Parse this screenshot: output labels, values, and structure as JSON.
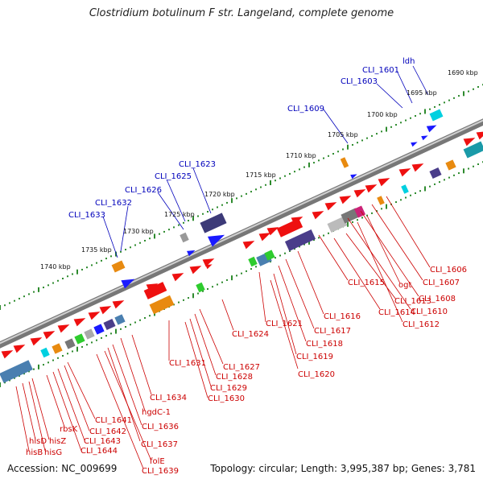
{
  "title": "Clostridium botulinum F str. Langeland, complete genome",
  "accession_label": "Accession: NC_009699",
  "stats_label": "Topology: circular; Length: 3,995,387 bp; Genes: 3,781",
  "colors": {
    "leader_top": "#0000bb",
    "leader_bottom": "#cc0000",
    "backbone": "#8a8a8a",
    "tick_dots": "#2e8b2e"
  },
  "scale_labels": [
    "1690 kbp",
    "1695 kbp",
    "1700 kbp",
    "1705 kbp",
    "1710 kbp",
    "1715 kbp",
    "1720 kbp",
    "1725 kbp",
    "1730 kbp",
    "1735 kbp",
    "1740 kbp"
  ],
  "top_gene_labels": [
    "ldh",
    "CLI_1601",
    "CLI_1603",
    "CLI_1609",
    "CLI_1623",
    "CLI_1625",
    "CLI_1626",
    "CLI_1632",
    "CLI_1633"
  ],
  "bottom_gene_labels": [
    "CLI_1606",
    "CLI_1607",
    "CLI_1608",
    "CLI_1610",
    "ogt",
    "CLI_1613",
    "CLI_1614",
    "CLI_1612",
    "CLI_1615",
    "CLI_1616",
    "CLI_1617",
    "CLI_1618",
    "CLI_1619",
    "CLI_1620",
    "CLI_1621",
    "CLI_1624",
    "CLI_1627",
    "CLI_1628",
    "CLI_1629",
    "CLI_1630",
    "CLI_1631",
    "CLI_1634",
    "hgdC-1",
    "CLI_1636",
    "CLI_1637",
    "folE",
    "CLI_1639",
    "CLI_1641",
    "CLI_1642",
    "CLI_1643",
    "CLI_1644",
    "rbsK",
    "hisD",
    "hisZ",
    "hisB",
    "hisG"
  ]
}
